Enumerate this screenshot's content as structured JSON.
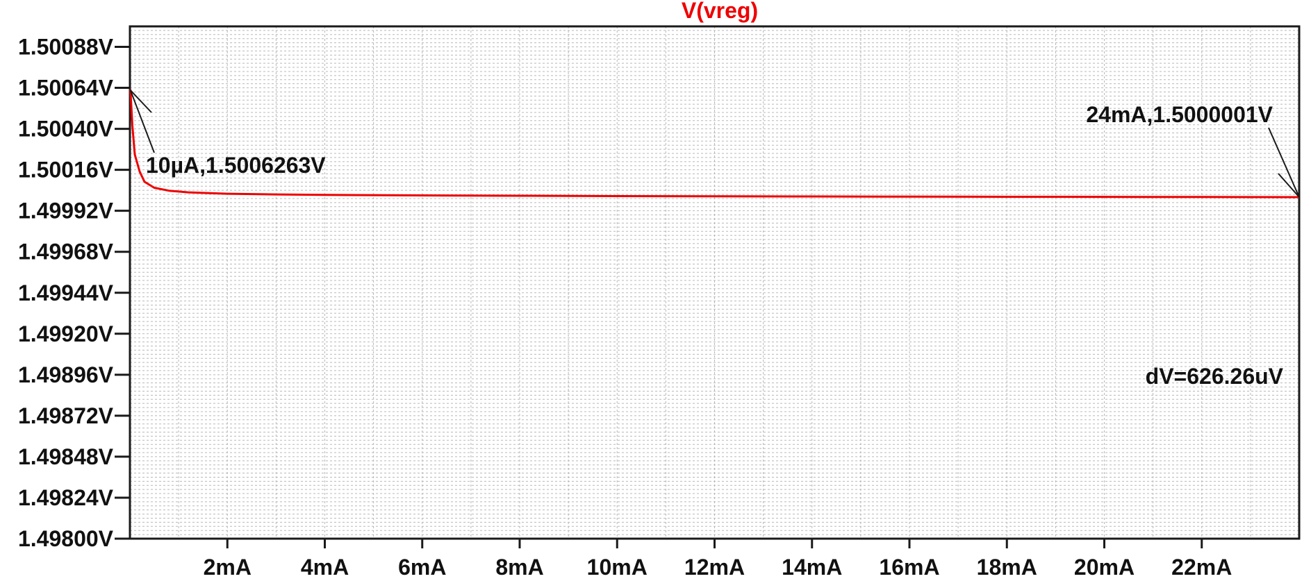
{
  "chart_data": {
    "type": "line",
    "title": "V(vreg)",
    "xlabel": "",
    "ylabel": "",
    "xlim": [
      0,
      24
    ],
    "ylim": [
      1.498,
      1.501
    ],
    "grid": true,
    "x_ticks": [
      2,
      4,
      6,
      8,
      10,
      12,
      14,
      16,
      18,
      20,
      22
    ],
    "x_tick_labels": [
      "2mA",
      "4mA",
      "6mA",
      "8mA",
      "10mA",
      "12mA",
      "14mA",
      "16mA",
      "18mA",
      "20mA",
      "22mA"
    ],
    "y_ticks": [
      1.498,
      1.49824,
      1.49848,
      1.49872,
      1.49896,
      1.4992,
      1.49944,
      1.49968,
      1.49992,
      1.50016,
      1.5004,
      1.50064,
      1.50088
    ],
    "y_tick_labels": [
      "1.49800V",
      "1.49824V",
      "1.49848V",
      "1.49872V",
      "1.49896V",
      "1.49920V",
      "1.49944V",
      "1.49968V",
      "1.49992V",
      "1.50016V",
      "1.50040V",
      "1.50064V",
      "1.50088V"
    ],
    "series": [
      {
        "name": "V(vreg)",
        "color": "#ee0000",
        "x": [
          0.01,
          0.05,
          0.1,
          0.2,
          0.3,
          0.5,
          0.8,
          1.2,
          2,
          3,
          4,
          6,
          8,
          10,
          12,
          14,
          16,
          18,
          20,
          22,
          24
        ],
        "y": [
          1.50063,
          1.50042,
          1.50025,
          1.50015,
          1.50009,
          1.500055,
          1.500038,
          1.500028,
          1.50002,
          1.500016,
          1.500013,
          1.50001,
          1.500008,
          1.500006,
          1.500005,
          1.500004,
          1.500003,
          1.500002,
          1.5000015,
          1.500001,
          1.5000001
        ]
      }
    ],
    "annotations": [
      {
        "text": "10µA,1.5006263V",
        "x": 0.01,
        "y": 1.5006263
      },
      {
        "text": "24mA,1.5000001V",
        "x": 24,
        "y": 1.5000001
      },
      {
        "text": "dV=626.26uV"
      }
    ]
  }
}
